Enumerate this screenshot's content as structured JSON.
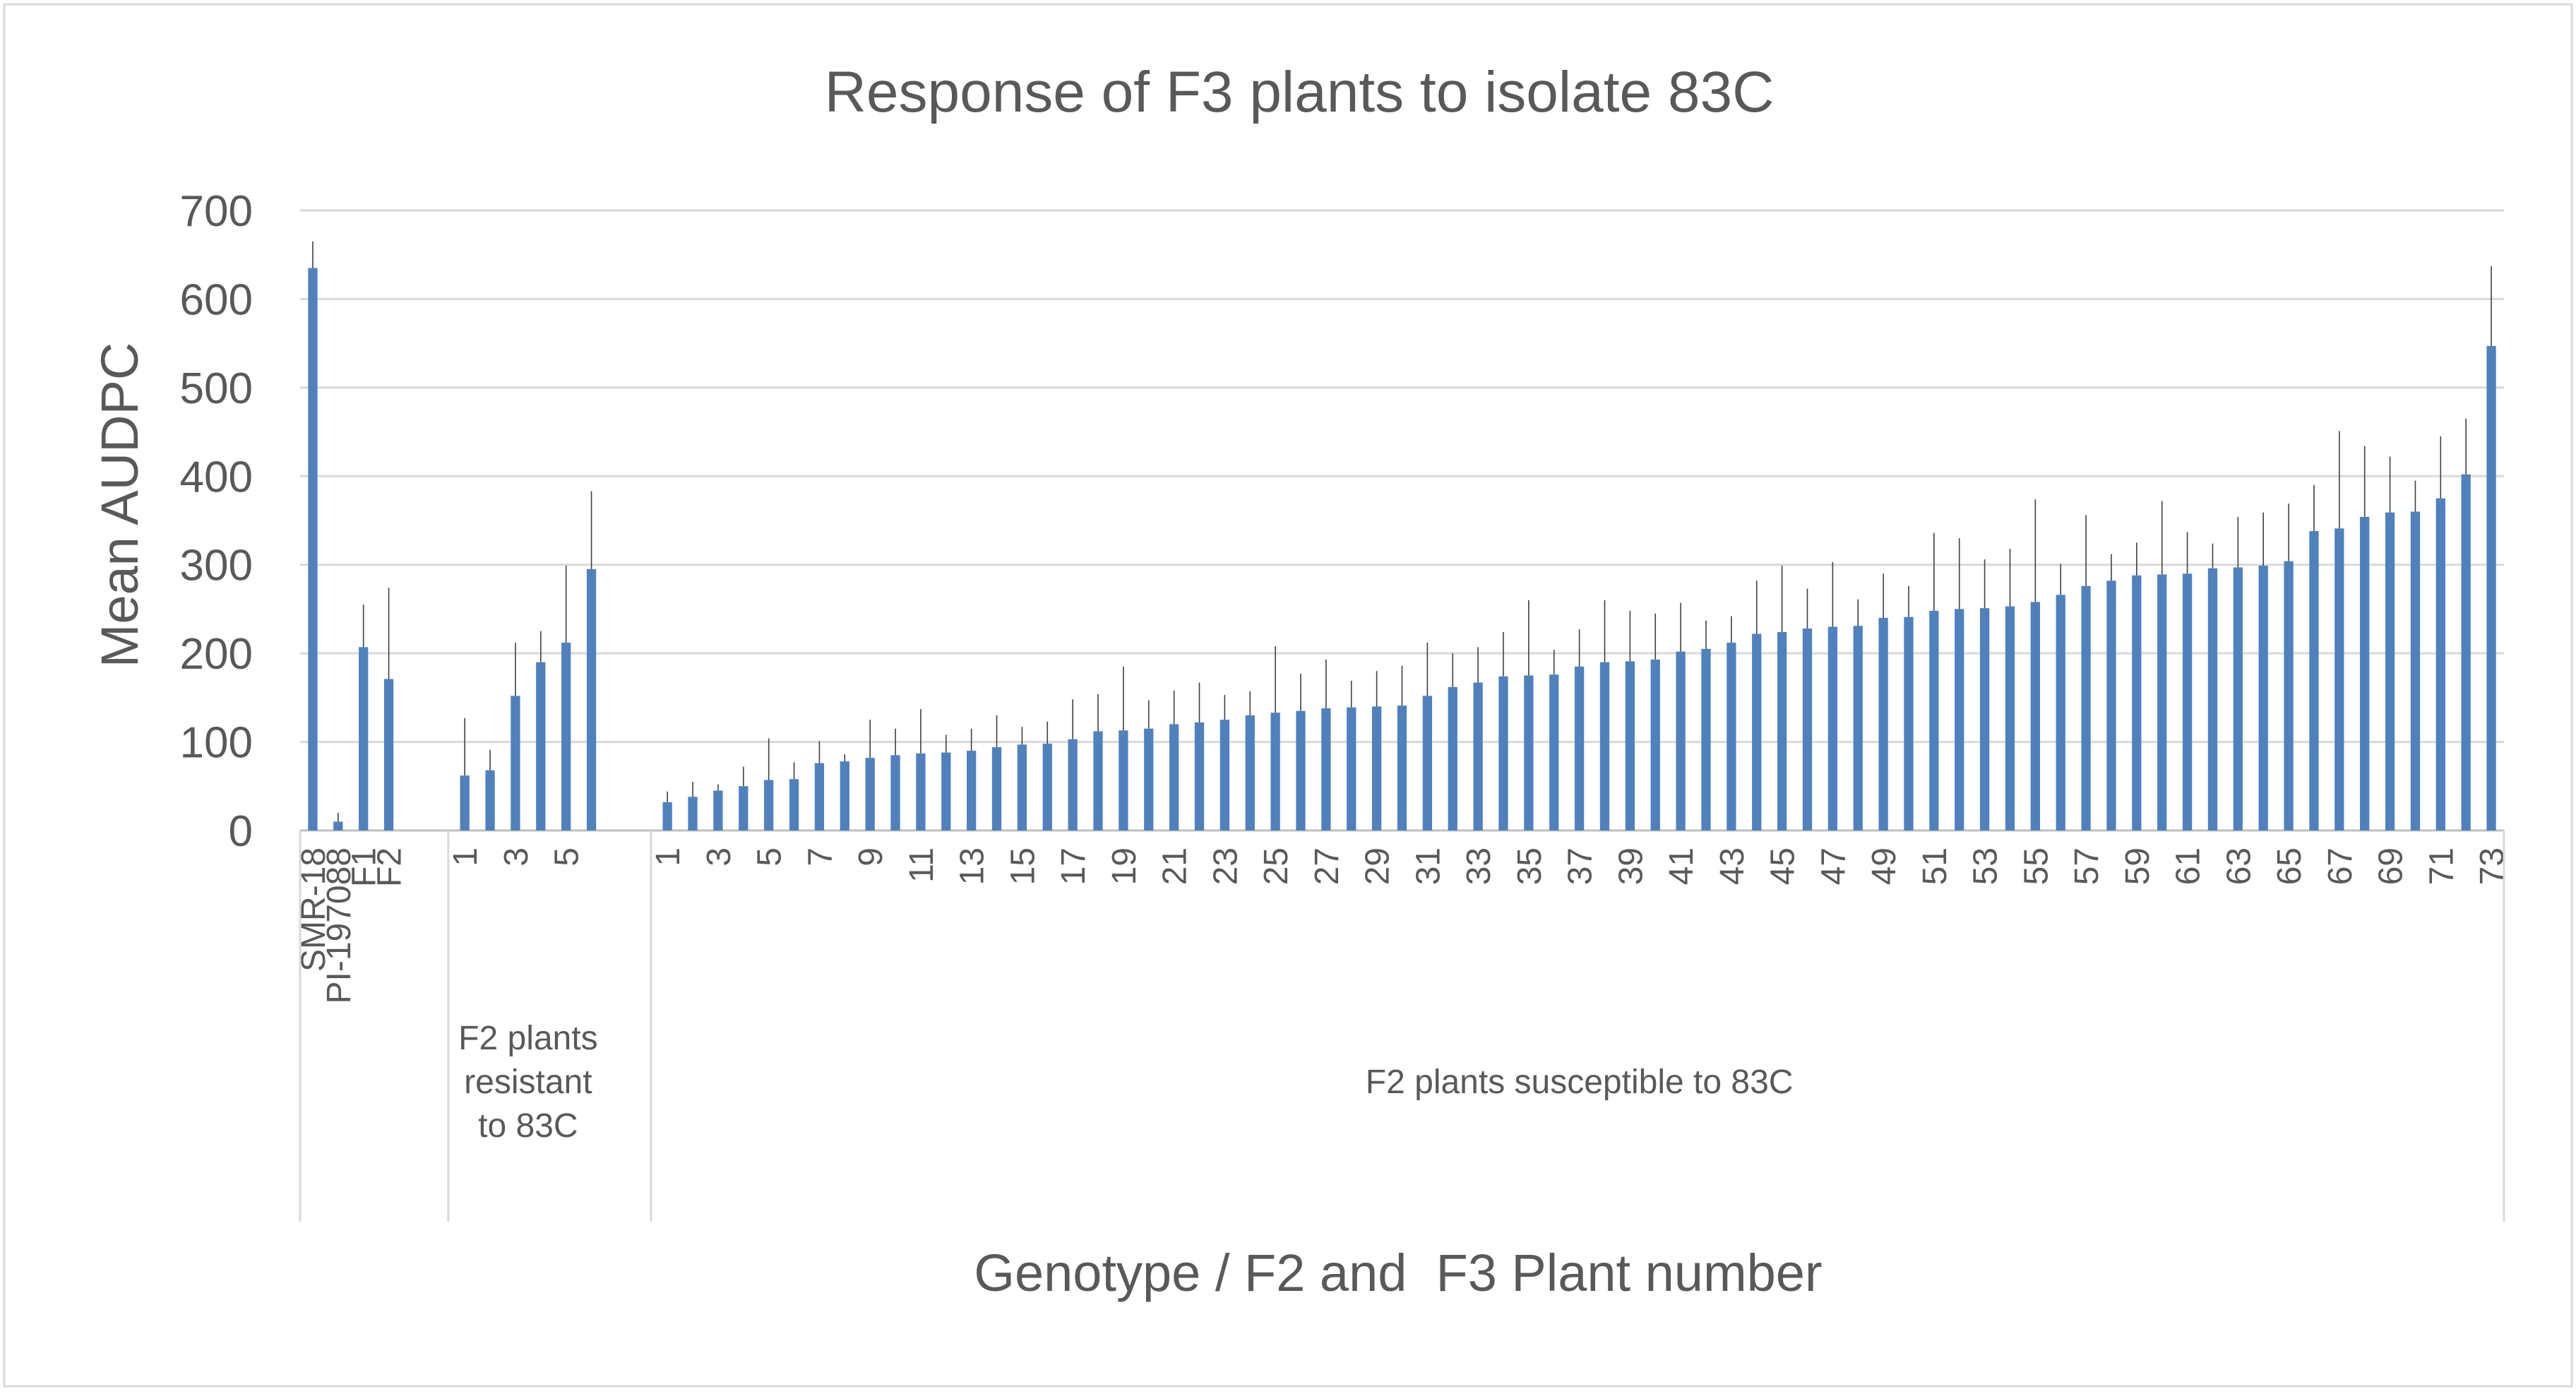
{
  "chart_data": {
    "type": "bar",
    "title": "Response of F3 plants to isolate 83C",
    "xlabel": "Genotype / F2 and  F3 Plant number",
    "ylabel": "Mean AUDPC",
    "ylim": [
      0,
      700
    ],
    "yticks": [
      0,
      100,
      200,
      300,
      400,
      500,
      600,
      700
    ],
    "grid": true,
    "colors": {
      "bar": "#4F81BD",
      "grid": "#D9D9D9",
      "axis": "#BFBFBF",
      "text": "#595959",
      "error": "#404040",
      "border": "#D9D9D9"
    },
    "groups": [
      {
        "name": "",
        "categories": [
          "SMR-18",
          "PI-197088",
          "F1",
          "F2"
        ],
        "values": [
          635,
          10,
          207,
          171
        ],
        "errors": [
          30,
          10,
          48,
          103
        ]
      },
      {
        "name": "F2 plants resistant to 83C",
        "categories": [
          "1",
          "2",
          "3",
          "4",
          "5",
          "6"
        ],
        "tick_labels": [
          "1",
          "",
          "3",
          "",
          "5",
          ""
        ],
        "values": [
          62,
          68,
          152,
          190,
          212,
          295
        ],
        "errors": [
          65,
          23,
          60,
          35,
          87,
          88
        ]
      },
      {
        "name": "F2 plants susceptible to 83C",
        "categories": [
          "1",
          "2",
          "3",
          "4",
          "5",
          "6",
          "7",
          "8",
          "9",
          "10",
          "11",
          "12",
          "13",
          "14",
          "15",
          "16",
          "17",
          "18",
          "19",
          "20",
          "21",
          "22",
          "23",
          "24",
          "25",
          "26",
          "27",
          "28",
          "29",
          "30",
          "31",
          "32",
          "33",
          "34",
          "35",
          "36",
          "37",
          "38",
          "39",
          "40",
          "41",
          "42",
          "43",
          "44",
          "45",
          "46",
          "47",
          "48",
          "49",
          "50",
          "51",
          "52",
          "53",
          "54",
          "55",
          "56",
          "57",
          "58",
          "59",
          "60",
          "61",
          "62",
          "63",
          "64",
          "65",
          "66",
          "67",
          "68",
          "69",
          "70",
          "71",
          "72",
          "73"
        ],
        "tick_labels": [
          "1",
          "",
          "3",
          "",
          "5",
          "",
          "7",
          "",
          "9",
          "",
          "11",
          "",
          "13",
          "",
          "15",
          "",
          "17",
          "",
          "19",
          "",
          "21",
          "",
          "23",
          "",
          "25",
          "",
          "27",
          "",
          "29",
          "",
          "31",
          "",
          "33",
          "",
          "35",
          "",
          "37",
          "",
          "39",
          "",
          "41",
          "",
          "43",
          "",
          "45",
          "",
          "47",
          "",
          "49",
          "",
          "51",
          "",
          "53",
          "",
          "55",
          "",
          "57",
          "",
          "59",
          "",
          "61",
          "",
          "63",
          "",
          "65",
          "",
          "67",
          "",
          "69",
          "",
          "71",
          "",
          "73"
        ],
        "values": [
          32,
          38,
          45,
          50,
          57,
          58,
          76,
          78,
          82,
          85,
          87,
          88,
          90,
          94,
          97,
          98,
          103,
          112,
          113,
          115,
          120,
          122,
          125,
          130,
          133,
          135,
          138,
          139,
          140,
          141,
          152,
          162,
          167,
          174,
          175,
          176,
          185,
          190,
          191,
          193,
          202,
          205,
          212,
          222,
          224,
          228,
          230,
          231,
          240,
          241,
          248,
          250,
          251,
          253,
          258,
          266,
          276,
          282,
          288,
          289,
          290,
          296,
          297,
          299,
          304,
          338,
          341,
          354,
          359,
          360,
          375,
          402,
          547
        ],
        "errors": [
          12,
          17,
          7,
          22,
          47,
          19,
          25,
          8,
          43,
          30,
          50,
          20,
          25,
          36,
          20,
          25,
          45,
          42,
          72,
          32,
          38,
          45,
          28,
          27,
          75,
          42,
          55,
          30,
          40,
          45,
          60,
          38,
          40,
          50,
          85,
          28,
          42,
          70,
          57,
          52,
          55,
          32,
          30,
          60,
          75,
          45,
          73,
          30,
          50,
          35,
          88,
          80,
          55,
          65,
          116,
          35,
          80,
          30,
          37,
          83,
          47,
          28,
          57,
          60,
          65,
          52,
          110,
          80,
          63,
          35,
          70,
          63,
          90
        ]
      }
    ]
  }
}
